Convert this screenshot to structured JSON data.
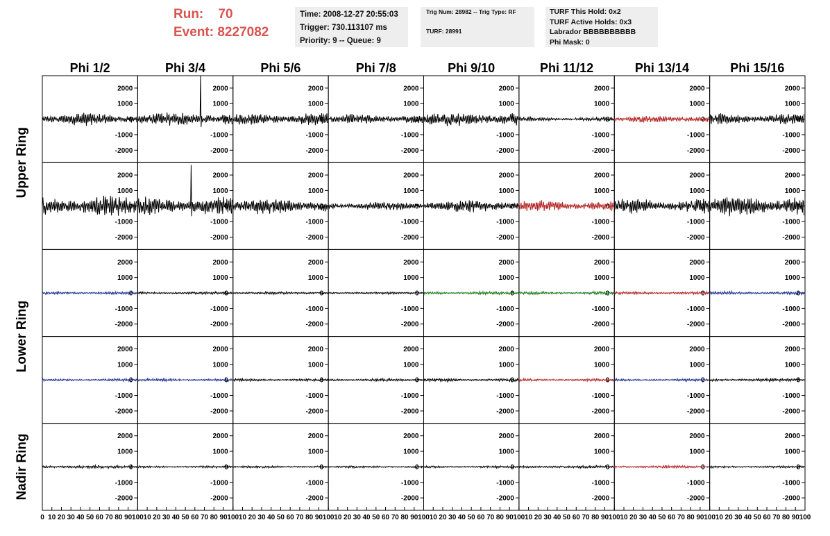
{
  "header": {
    "run_label": "Run:",
    "run_value": "70",
    "event_label": "Event:",
    "event_value": "8227082",
    "time": "Time: 2008-12-27 20:55:03",
    "trigger": "Trigger: 730.113107 ms",
    "priority_queue": "Priority: 9 -- Queue: 9",
    "trig_num_type": "Trig Num: 28982 -- Trig Type: RF",
    "turf": "TURF: 28991",
    "turf_this_hold": "TURF This Hold: 0x2",
    "turf_active_holds": "TURF Active Holds: 0x3",
    "labrador": "Labrador BBBBBBBBBB",
    "phi_mask": "Phi Mask: 0"
  },
  "colors": {
    "run_text": "#d9534f",
    "info_bg": "#eeeeee",
    "black": "#000000",
    "red": "#b22222",
    "blue": "#1f2f8f",
    "green": "#1a7a1a"
  },
  "chart_data": {
    "type": "line",
    "columns": [
      "Phi 1/2",
      "Phi 3/4",
      "Phi 5/6",
      "Phi 7/8",
      "Phi 9/10",
      "Phi 11/12",
      "Phi 13/14",
      "Phi 15/16"
    ],
    "row_labels": [
      "Upper Ring",
      "Lower Ring",
      "Nadir Ring"
    ],
    "row_label_spans": [
      [
        0,
        1
      ],
      [
        2,
        3
      ],
      [
        4,
        4
      ]
    ],
    "ylim": [
      -2800,
      2800
    ],
    "yticks": [
      -2000,
      -1000,
      0,
      1000,
      2000
    ],
    "xlim": [
      0,
      100
    ],
    "xticks_first": [
      "0",
      "10",
      "20",
      "30",
      "40",
      "50",
      "60",
      "70",
      "80",
      "90",
      "100"
    ],
    "xticks_other": [
      "10",
      "20",
      "30",
      "40",
      "50",
      "60",
      "70",
      "80",
      "90",
      "100"
    ],
    "rows": [
      {
        "name": "Upper Ring A",
        "traces": [
          {
            "color": "black",
            "amp": 450,
            "spike": null
          },
          {
            "color": "black",
            "amp": 500,
            "spike": {
              "x": 66,
              "y": 2900
            }
          },
          {
            "color": "black",
            "amp": 450,
            "spike": null
          },
          {
            "color": "black",
            "amp": 350,
            "spike": null
          },
          {
            "color": "black",
            "amp": 500,
            "spike": null
          },
          {
            "color": "black",
            "amp": 150,
            "spike": null
          },
          {
            "color": "red",
            "amp": 250,
            "spike": null
          },
          {
            "color": "black",
            "amp": 400,
            "spike": null
          }
        ]
      },
      {
        "name": "Upper Ring B",
        "traces": [
          {
            "color": "black",
            "amp": 750,
            "spike": null
          },
          {
            "color": "black",
            "amp": 650,
            "spike": {
              "x": 56,
              "y": 2650
            }
          },
          {
            "color": "black",
            "amp": 550,
            "spike": null
          },
          {
            "color": "black",
            "amp": 300,
            "spike": null
          },
          {
            "color": "black",
            "amp": 450,
            "spike": null
          },
          {
            "color": "red",
            "amp": 400,
            "spike": null
          },
          {
            "color": "black",
            "amp": 550,
            "spike": null
          },
          {
            "color": "black",
            "amp": 700,
            "spike": null
          }
        ]
      },
      {
        "name": "Lower Ring A",
        "traces": [
          {
            "color": "blue",
            "amp": 100,
            "spike": null
          },
          {
            "color": "black",
            "amp": 100,
            "spike": null
          },
          {
            "color": "black",
            "amp": 100,
            "spike": null
          },
          {
            "color": "black",
            "amp": 90,
            "spike": null
          },
          {
            "color": "green",
            "amp": 110,
            "spike": null
          },
          {
            "color": "green",
            "amp": 110,
            "spike": null
          },
          {
            "color": "red",
            "amp": 100,
            "spike": null
          },
          {
            "color": "blue",
            "amp": 120,
            "spike": null
          }
        ]
      },
      {
        "name": "Lower Ring B",
        "traces": [
          {
            "color": "blue",
            "amp": 100,
            "spike": null
          },
          {
            "color": "blue",
            "amp": 100,
            "spike": null
          },
          {
            "color": "black",
            "amp": 90,
            "spike": null
          },
          {
            "color": "black",
            "amp": 100,
            "spike": null
          },
          {
            "color": "black",
            "amp": 110,
            "spike": null
          },
          {
            "color": "red",
            "amp": 100,
            "spike": null
          },
          {
            "color": "blue",
            "amp": 90,
            "spike": null
          },
          {
            "color": "black",
            "amp": 120,
            "spike": null
          }
        ]
      },
      {
        "name": "Nadir Ring",
        "traces": [
          {
            "color": "black",
            "amp": 120,
            "spike": null
          },
          {
            "color": "black",
            "amp": 80,
            "spike": null
          },
          {
            "color": "black",
            "amp": 80,
            "spike": null
          },
          {
            "color": "black",
            "amp": 80,
            "spike": null
          },
          {
            "color": "black",
            "amp": 80,
            "spike": null
          },
          {
            "color": "black",
            "amp": 110,
            "spike": null
          },
          {
            "color": "red",
            "amp": 100,
            "spike": null
          },
          {
            "color": "black",
            "amp": 80,
            "spike": null
          }
        ]
      }
    ]
  }
}
